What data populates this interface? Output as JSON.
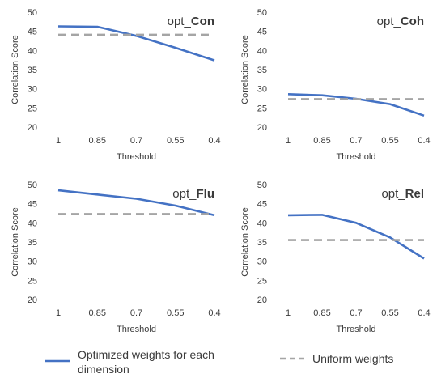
{
  "chart_data": [
    {
      "type": "line",
      "title_prefix": "opt_",
      "title_emph": "Con",
      "xlabel": "Threshold",
      "ylabel": "Correlation Score",
      "categories": [
        "1",
        "0.85",
        "0.7",
        "0.55",
        "0.4"
      ],
      "ylim": [
        20,
        50
      ],
      "yticks": [
        20,
        25,
        30,
        35,
        40,
        45,
        50
      ],
      "grid": false,
      "series": [
        {
          "name": "Optimized weights for each dimension",
          "values": [
            46.3,
            46.2,
            43.8,
            40.7,
            37.4
          ]
        },
        {
          "name": "Uniform weights",
          "values": [
            44.1,
            44.1,
            44.1,
            44.1,
            44.1
          ]
        }
      ]
    },
    {
      "type": "line",
      "title_prefix": "opt_",
      "title_emph": "Coh",
      "xlabel": "Threshold",
      "ylabel": "Correlation Score",
      "categories": [
        "1",
        "0.85",
        "0.7",
        "0.55",
        "0.4"
      ],
      "ylim": [
        20,
        50
      ],
      "yticks": [
        20,
        25,
        30,
        35,
        40,
        45,
        50
      ],
      "grid": false,
      "series": [
        {
          "name": "Optimized weights for each dimension",
          "values": [
            28.6,
            28.3,
            27.4,
            26.0,
            23.0
          ]
        },
        {
          "name": "Uniform weights",
          "values": [
            27.3,
            27.3,
            27.3,
            27.3,
            27.3
          ]
        }
      ]
    },
    {
      "type": "line",
      "title_prefix": "opt_",
      "title_emph": "Flu",
      "xlabel": "Threshold",
      "ylabel": "Correlation Score",
      "categories": [
        "1",
        "0.85",
        "0.7",
        "0.55",
        "0.4"
      ],
      "ylim": [
        20,
        50
      ],
      "yticks": [
        20,
        25,
        30,
        35,
        40,
        45,
        50
      ],
      "grid": false,
      "series": [
        {
          "name": "Optimized weights for each dimension",
          "values": [
            48.5,
            47.4,
            46.3,
            44.5,
            42.0
          ]
        },
        {
          "name": "Uniform weights",
          "values": [
            42.3,
            42.3,
            42.3,
            42.3,
            42.3
          ]
        }
      ]
    },
    {
      "type": "line",
      "title_prefix": "opt_",
      "title_emph": "Rel",
      "xlabel": "Threshold",
      "ylabel": "Correlation Score",
      "categories": [
        "1",
        "0.85",
        "0.7",
        "0.55",
        "0.4"
      ],
      "ylim": [
        20,
        50
      ],
      "yticks": [
        20,
        25,
        30,
        35,
        40,
        45,
        50
      ],
      "grid": false,
      "series": [
        {
          "name": "Optimized weights for each dimension",
          "values": [
            42.0,
            42.1,
            40.0,
            36.2,
            30.7
          ]
        },
        {
          "name": "Uniform weights",
          "values": [
            35.5,
            35.5,
            35.5,
            35.5,
            35.5
          ]
        }
      ]
    }
  ],
  "legend": {
    "placement": "bottom",
    "items": [
      {
        "label_line1": "Optimized weights for each",
        "label_line2": "dimension",
        "style": "solid",
        "color": "#4472c4"
      },
      {
        "label_line1": "Uniform weights",
        "label_line2": "",
        "style": "dashed",
        "color": "#a5a5a5"
      }
    ]
  },
  "colors": {
    "optimized": "#4472c4",
    "uniform": "#a5a5a5",
    "text": "#3a3a3a"
  }
}
